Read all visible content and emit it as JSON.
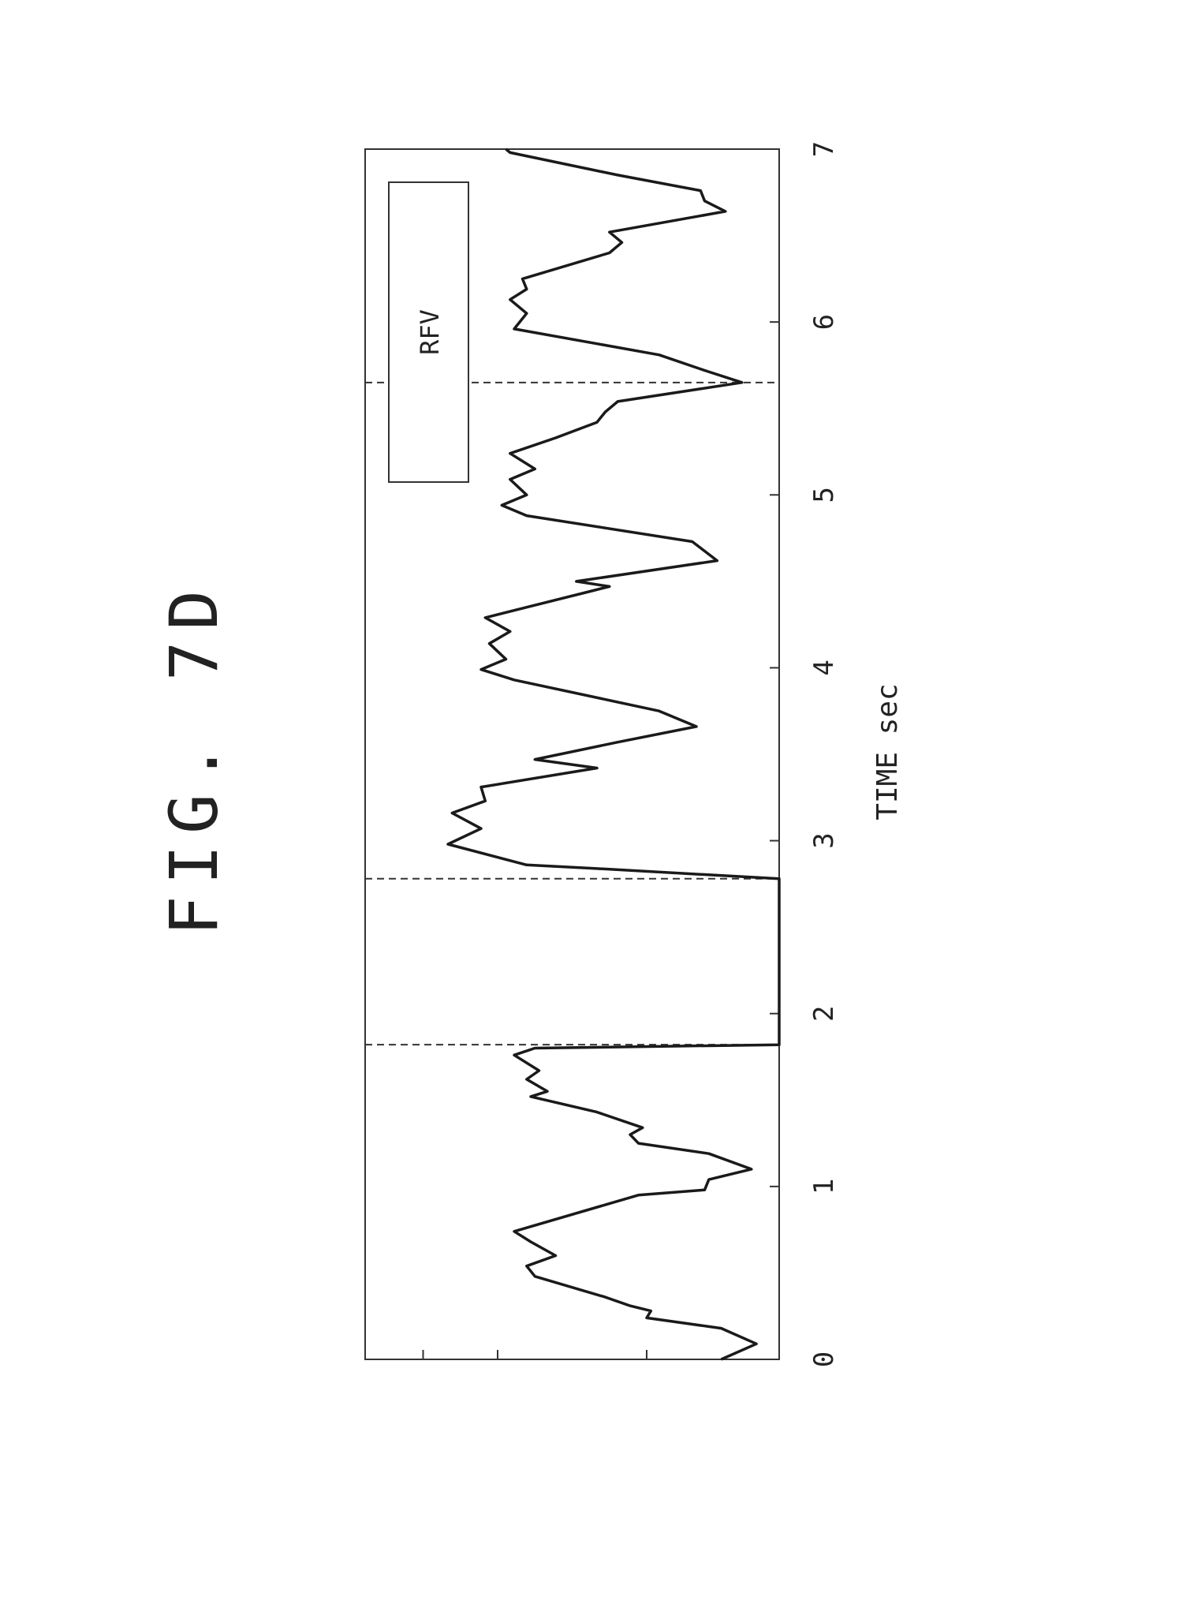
{
  "figure_label": "FIG. 7D",
  "chart_data": {
    "type": "line",
    "orientation": "rotated 90° counter-clockwise (time axis runs bottom-to-top)",
    "title": "",
    "xlabel": "TIME sec",
    "ylabel": "",
    "xlim": [
      0,
      7
    ],
    "ylim": [
      0,
      1
    ],
    "x_ticks": [
      "0",
      "1",
      "2",
      "3",
      "4",
      "5",
      "6",
      "7"
    ],
    "y_ticks_unlabeled": [
      0.32,
      0.68,
      0.86
    ],
    "grid": false,
    "legend": {
      "placement": "top-right",
      "entries": [
        "RFV"
      ]
    },
    "reference_lines_x": [
      1.82,
      2.78,
      5.65
    ],
    "series": [
      {
        "name": "RFV",
        "color": "#1a1a1a",
        "points": [
          [
            0,
            0.14
          ],
          [
            0.09,
            0.055
          ],
          [
            0.18,
            0.14
          ],
          [
            0.24,
            0.32
          ],
          [
            0.28,
            0.31
          ],
          [
            0.31,
            0.36
          ],
          [
            0.36,
            0.42
          ],
          [
            0.48,
            0.59
          ],
          [
            0.54,
            0.61
          ],
          [
            0.6,
            0.54
          ],
          [
            0.68,
            0.6
          ],
          [
            0.74,
            0.64
          ],
          [
            0.95,
            0.34
          ],
          [
            0.98,
            0.18
          ],
          [
            1.04,
            0.17
          ],
          [
            1.1,
            0.067
          ],
          [
            1.19,
            0.17
          ],
          [
            1.25,
            0.34
          ],
          [
            1.3,
            0.36
          ],
          [
            1.34,
            0.33
          ],
          [
            1.43,
            0.44
          ],
          [
            1.52,
            0.6
          ],
          [
            1.55,
            0.56
          ],
          [
            1.62,
            0.61
          ],
          [
            1.67,
            0.58
          ],
          [
            1.76,
            0.64
          ],
          [
            1.8,
            0.59
          ],
          [
            1.82,
            0.0
          ],
          [
            2.78,
            0.0
          ],
          [
            2.84,
            0.45
          ],
          [
            2.86,
            0.61
          ],
          [
            2.98,
            0.8
          ],
          [
            3.07,
            0.72
          ],
          [
            3.16,
            0.79
          ],
          [
            3.23,
            0.71
          ],
          [
            3.31,
            0.72
          ],
          [
            3.42,
            0.44
          ],
          [
            3.47,
            0.59
          ],
          [
            3.57,
            0.39
          ],
          [
            3.66,
            0.2
          ],
          [
            3.75,
            0.29
          ],
          [
            3.93,
            0.64
          ],
          [
            3.99,
            0.72
          ],
          [
            4.05,
            0.66
          ],
          [
            4.14,
            0.7
          ],
          [
            4.21,
            0.65
          ],
          [
            4.29,
            0.71
          ],
          [
            4.35,
            0.61
          ],
          [
            4.44,
            0.46
          ],
          [
            4.47,
            0.41
          ],
          [
            4.5,
            0.49
          ],
          [
            4.62,
            0.15
          ],
          [
            4.73,
            0.21
          ],
          [
            4.88,
            0.61
          ],
          [
            4.94,
            0.67
          ],
          [
            5.0,
            0.61
          ],
          [
            5.09,
            0.65
          ],
          [
            5.15,
            0.59
          ],
          [
            5.24,
            0.65
          ],
          [
            5.33,
            0.54
          ],
          [
            5.42,
            0.44
          ],
          [
            5.48,
            0.42
          ],
          [
            5.54,
            0.39
          ],
          [
            5.65,
            0.09
          ],
          [
            5.72,
            0.18
          ],
          [
            5.81,
            0.29
          ],
          [
            5.96,
            0.64
          ],
          [
            6.05,
            0.61
          ],
          [
            6.13,
            0.65
          ],
          [
            6.19,
            0.61
          ],
          [
            6.25,
            0.62
          ],
          [
            6.4,
            0.41
          ],
          [
            6.46,
            0.38
          ],
          [
            6.52,
            0.41
          ],
          [
            6.64,
            0.13
          ],
          [
            6.7,
            0.18
          ],
          [
            6.76,
            0.19
          ],
          [
            6.85,
            0.39
          ],
          [
            6.98,
            0.65
          ],
          [
            7.0,
            0.66
          ]
        ]
      }
    ]
  }
}
